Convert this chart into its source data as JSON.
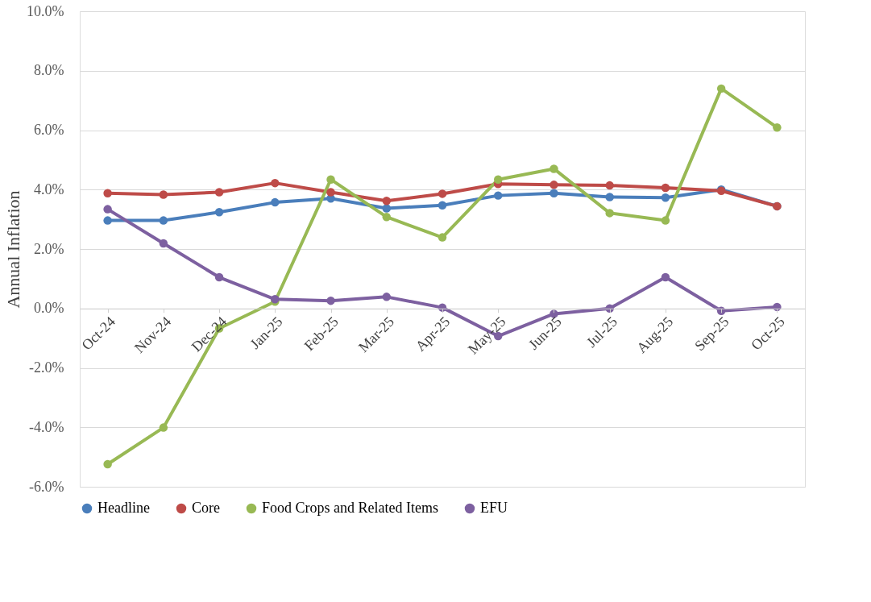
{
  "chart_data": {
    "type": "line",
    "ylabel": "Annual Inflation",
    "categories": [
      "Oct-24",
      "Nov-24",
      "Dec-24",
      "Jan-25",
      "Feb-25",
      "Mar-25",
      "Apr-25",
      "May-25",
      "Jun-25",
      "Jul-25",
      "Aug-25",
      "Sep-25",
      "Oct-25"
    ],
    "series": [
      {
        "name": "Headline",
        "color": "#4a7ebb",
        "values": [
          2.96,
          2.96,
          3.24,
          3.57,
          3.7,
          3.37,
          3.47,
          3.8,
          3.88,
          3.75,
          3.73,
          4.0,
          3.44
        ]
      },
      {
        "name": "Core",
        "color": "#be4b48",
        "values": [
          3.88,
          3.83,
          3.91,
          4.22,
          3.91,
          3.62,
          3.86,
          4.19,
          4.16,
          4.14,
          4.06,
          3.96,
          3.44
        ]
      },
      {
        "name": "Food Crops and Related Items",
        "color": "#98b954",
        "values": [
          -5.24,
          -4.01,
          -0.67,
          0.23,
          4.34,
          3.08,
          2.39,
          4.34,
          4.7,
          3.21,
          2.96,
          7.4,
          6.09
        ]
      },
      {
        "name": "EFU",
        "color": "#7d60a0",
        "values": [
          3.34,
          2.19,
          1.05,
          0.31,
          0.26,
          0.39,
          0.03,
          -0.93,
          -0.18,
          0.0,
          1.05,
          -0.08,
          0.05
        ]
      }
    ],
    "ylim": [
      -6,
      10
    ],
    "yticks": [
      {
        "value": -6,
        "label": "-6.0%"
      },
      {
        "value": -4,
        "label": "-4.0%"
      },
      {
        "value": -2,
        "label": "-2.0%"
      },
      {
        "value": 0,
        "label": "0.0%"
      },
      {
        "value": 2,
        "label": "2.0%"
      },
      {
        "value": 4,
        "label": "4.0%"
      },
      {
        "value": 6,
        "label": "6.0%"
      },
      {
        "value": 8,
        "label": "8.0%"
      },
      {
        "value": 10,
        "label": "10.0%"
      }
    ],
    "grid": "y",
    "legend": "bottom",
    "marker": "circle",
    "line_style": "solid"
  }
}
